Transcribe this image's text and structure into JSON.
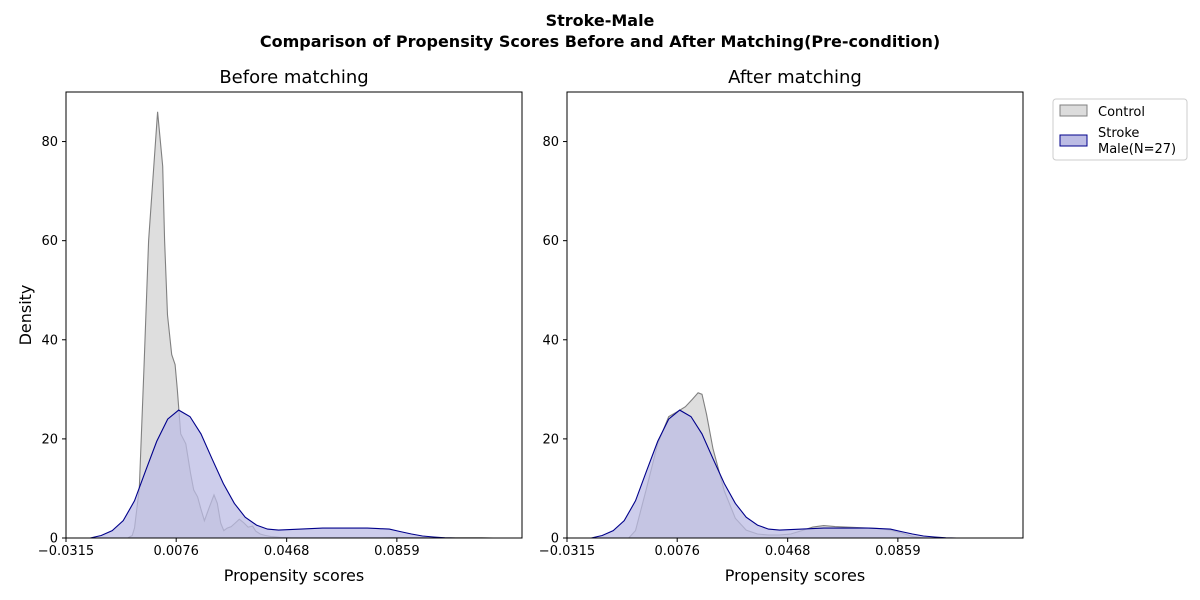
{
  "chart_data": {
    "type": "area",
    "title": "Stroke-Male",
    "subtitle": "Comparison of Propensity Scores Before and After Matching(Pre-condition)",
    "legend": {
      "placement": "outside-right",
      "entries": [
        {
          "label": "Control",
          "fill": "#dcdcdc",
          "stroke": "#808080"
        },
        {
          "label_lines": [
            "Stroke",
            "Male(N=27)"
          ],
          "fill": "#bcbce4",
          "stroke": "#00008b"
        }
      ]
    },
    "shared_axes": {
      "xlabel": "Propensity scores",
      "ylabel": "Density",
      "xlim": [
        -0.0315,
        0.1303
      ],
      "ylim": [
        0,
        90
      ],
      "xticks": [
        -0.0315,
        0.0076,
        0.0468,
        0.0859
      ],
      "xtick_labels": [
        "−0.0315",
        "0.0076",
        "0.0468",
        "0.0859"
      ],
      "yticks": [
        0,
        20,
        40,
        60,
        80
      ],
      "grid": false
    },
    "panels": [
      {
        "title": "Before matching",
        "series": [
          {
            "name": "Control",
            "x": [
              -0.0096,
              -0.008,
              -0.0072,
              -0.0055,
              -0.0038,
              -0.0022,
              0.001,
              0.0028,
              0.0035,
              0.0045,
              0.006,
              0.0072,
              0.008,
              0.0092,
              0.011,
              0.0127,
              0.0138,
              0.0152,
              0.0163,
              0.0176,
              0.0192,
              0.021,
              0.0222,
              0.0234,
              0.0245,
              0.0257,
              0.0271,
              0.0285,
              0.03,
              0.0315,
              0.0331,
              0.0347,
              0.0358,
              0.0374,
              0.0393,
              0.0412,
              0.0432,
              0.0451,
              0.0467,
              0.0486,
              0.0504,
              0.0525,
              0.0564,
              0.0603,
              0.0643,
              0.068,
              0.072,
              0.076,
              0.08,
              0.084,
              0.088,
              0.092,
              0.096,
              0.1,
              0.104,
              0.108,
              0.112,
              0.116,
              0.12
            ],
            "y": [
              0,
              0.5,
              2,
              10,
              35,
              60,
              86,
              75,
              60,
              45,
              37,
              35,
              30,
              21,
              19,
              13,
              9.7,
              8.3,
              6,
              3.5,
              6,
              8.7,
              7,
              3,
              1.5,
              2,
              2.3,
              3,
              3.8,
              3.1,
              2.2,
              2.4,
              1.4,
              0.8,
              0.5,
              0.3,
              0.2,
              0.1,
              0.1,
              0.05,
              0.05,
              0.05,
              0.05,
              0.05,
              0.05,
              0.05,
              0.05,
              0.05,
              0.05,
              0.1,
              0.1,
              0.1,
              0.1,
              0.05,
              0.05,
              0.05,
              0.05,
              0.05,
              0
            ]
          },
          {
            "name": "Stroke\nMale(N=27)",
            "x": [
              -0.0229,
              -0.019,
              -0.0151,
              -0.0112,
              -0.0072,
              -0.0033,
              0.0007,
              0.0046,
              0.0085,
              0.0125,
              0.0164,
              0.0203,
              0.0243,
              0.0282,
              0.0321,
              0.0361,
              0.04,
              0.0439,
              0.0479,
              0.0518,
              0.0557,
              0.0596,
              0.0636,
              0.0675,
              0.0714,
              0.0754,
              0.0793,
              0.0832,
              0.0872,
              0.0911,
              0.095,
              0.099,
              0.1029,
              0.1068,
              0.108
            ],
            "y": [
              0,
              0.5,
              1.5,
              3.5,
              7.5,
              13.5,
              19.5,
              24,
              25.8,
              24.5,
              21,
              16,
              11,
              7,
              4.2,
              2.6,
              1.8,
              1.6,
              1.7,
              1.8,
              1.9,
              2.0,
              2.0,
              2.0,
              2.0,
              2.0,
              1.9,
              1.8,
              1.3,
              0.8,
              0.4,
              0.2,
              0.05,
              0,
              0
            ]
          }
        ]
      },
      {
        "title": "After matching",
        "series": [
          {
            "name": "Control",
            "x": [
              -0.0096,
              -0.0072,
              -0.0033,
              0.0007,
              0.0046,
              0.008,
              0.0105,
              0.013,
              0.015,
              0.0164,
              0.018,
              0.0203,
              0.0243,
              0.0282,
              0.0321,
              0.0361,
              0.04,
              0.0439,
              0.0479,
              0.0518,
              0.0557,
              0.0596,
              0.0636,
              0.0675,
              0.0714,
              0.0754,
              0.0793,
              0.0832,
              0.0872,
              0.0911,
              0.095
            ],
            "y": [
              0,
              1.5,
              10,
              19,
              24.5,
              25.6,
              26.5,
              28,
              29.3,
              29,
              25,
              18,
              9.5,
              4,
              1.6,
              0.8,
              0.6,
              0.6,
              0.8,
              1.5,
              2.2,
              2.5,
              2.3,
              2.2,
              2.1,
              2.0,
              1.9,
              1.6,
              1.0,
              0.3,
              0
            ]
          },
          {
            "name": "Stroke\nMale(N=27)",
            "x": [
              -0.0229,
              -0.019,
              -0.0151,
              -0.0112,
              -0.0072,
              -0.0033,
              0.0007,
              0.0046,
              0.0085,
              0.0125,
              0.0164,
              0.0203,
              0.0243,
              0.0282,
              0.0321,
              0.0361,
              0.04,
              0.0439,
              0.0479,
              0.0518,
              0.0557,
              0.0596,
              0.0636,
              0.0675,
              0.0714,
              0.0754,
              0.0793,
              0.0832,
              0.0872,
              0.0911,
              0.095,
              0.099,
              0.1029,
              0.1068,
              0.108
            ],
            "y": [
              0,
              0.5,
              1.5,
              3.5,
              7.5,
              13.5,
              19.5,
              24,
              25.8,
              24.5,
              21,
              16,
              11,
              7,
              4.2,
              2.6,
              1.8,
              1.6,
              1.7,
              1.8,
              1.9,
              2.0,
              2.0,
              2.0,
              2.0,
              2.0,
              1.9,
              1.8,
              1.3,
              0.8,
              0.4,
              0.2,
              0.05,
              0,
              0
            ]
          }
        ]
      }
    ]
  }
}
